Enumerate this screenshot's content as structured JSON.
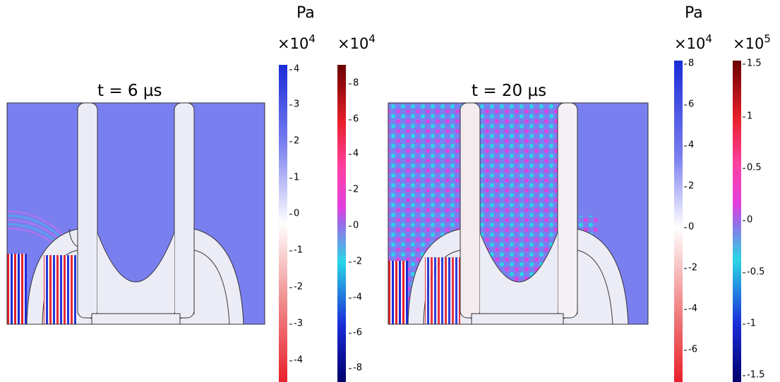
{
  "chart_data": [
    {
      "type": "heatmap",
      "title": "t = 6 µs",
      "colorbars": [
        {
          "unit": "Pa",
          "scale_base": "×10",
          "scale_exp": "4",
          "ticks": [
            "4",
            "3",
            "2",
            "1",
            "0",
            "-1",
            "-2",
            "-3",
            "-4"
          ],
          "colormap": "blue-white-red"
        },
        {
          "unit": "",
          "scale_base": "×10",
          "scale_exp": "4",
          "ticks": [
            "8",
            "6",
            "4",
            "2",
            "0",
            "-2",
            "-4",
            "-6",
            "-8"
          ],
          "colormap": "darkred-red-magenta-cyan-blue"
        }
      ]
    },
    {
      "type": "heatmap",
      "title": "t = 20 µs",
      "colorbars": [
        {
          "unit": "Pa",
          "scale_base": "×10",
          "scale_exp": "4",
          "ticks": [
            "8",
            "6",
            "4",
            "2",
            "0",
            "-2",
            "-4",
            "-6"
          ],
          "colormap": "blue-white-red"
        },
        {
          "unit": "",
          "scale_base": "×10",
          "scale_exp": "5",
          "ticks": [
            "1.5",
            "1",
            "0.5",
            "0",
            "-0.5",
            "-1",
            "-1.5"
          ],
          "colormap": "darkred-red-magenta-cyan-blue"
        }
      ]
    }
  ],
  "colors": {
    "fluid": "#7a7ff0",
    "solid": "#ececf6",
    "wave_red": "#e8202a",
    "wave_blue": "#1a2cd8",
    "wave_magenta": "#e040e0",
    "wave_cyan": "#2ad6e6"
  }
}
